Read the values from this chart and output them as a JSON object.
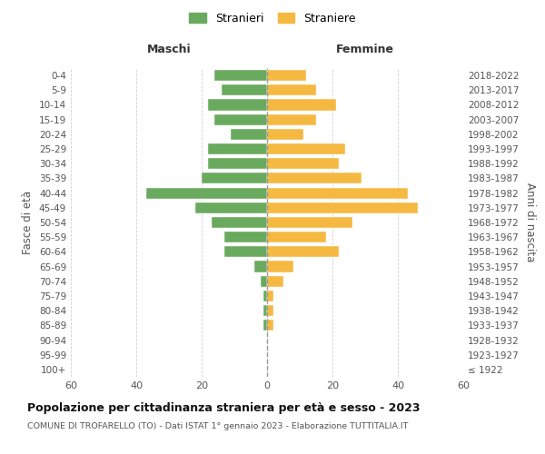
{
  "age_groups": [
    "100+",
    "95-99",
    "90-94",
    "85-89",
    "80-84",
    "75-79",
    "70-74",
    "65-69",
    "60-64",
    "55-59",
    "50-54",
    "45-49",
    "40-44",
    "35-39",
    "30-34",
    "25-29",
    "20-24",
    "15-19",
    "10-14",
    "5-9",
    "0-4"
  ],
  "birth_years": [
    "≤ 1922",
    "1923-1927",
    "1928-1932",
    "1933-1937",
    "1938-1942",
    "1943-1947",
    "1948-1952",
    "1953-1957",
    "1958-1962",
    "1963-1967",
    "1968-1972",
    "1973-1977",
    "1978-1982",
    "1983-1987",
    "1988-1992",
    "1993-1997",
    "1998-2002",
    "2003-2007",
    "2008-2012",
    "2013-2017",
    "2018-2022"
  ],
  "maschi": [
    0,
    0,
    0,
    1,
    1,
    1,
    2,
    4,
    13,
    13,
    17,
    22,
    37,
    20,
    18,
    18,
    11,
    16,
    18,
    14,
    16
  ],
  "femmine": [
    0,
    0,
    0,
    2,
    2,
    2,
    5,
    8,
    22,
    18,
    26,
    46,
    43,
    29,
    22,
    24,
    11,
    15,
    21,
    15,
    12
  ],
  "maschi_color": "#6aaa5e",
  "femmine_color": "#f5b942",
  "background_color": "#ffffff",
  "grid_color": "#cccccc",
  "title": "Popolazione per cittadinanza straniera per età e sesso - 2023",
  "subtitle": "COMUNE DI TROFARELLO (TO) - Dati ISTAT 1° gennaio 2023 - Elaborazione TUTTITALIA.IT",
  "legend_maschi": "Stranieri",
  "legend_femmine": "Straniere",
  "xlabel_left": "Maschi",
  "xlabel_right": "Femmine",
  "ylabel_left": "Fasce di età",
  "ylabel_right": "Anni di nascita",
  "xlim": 60
}
